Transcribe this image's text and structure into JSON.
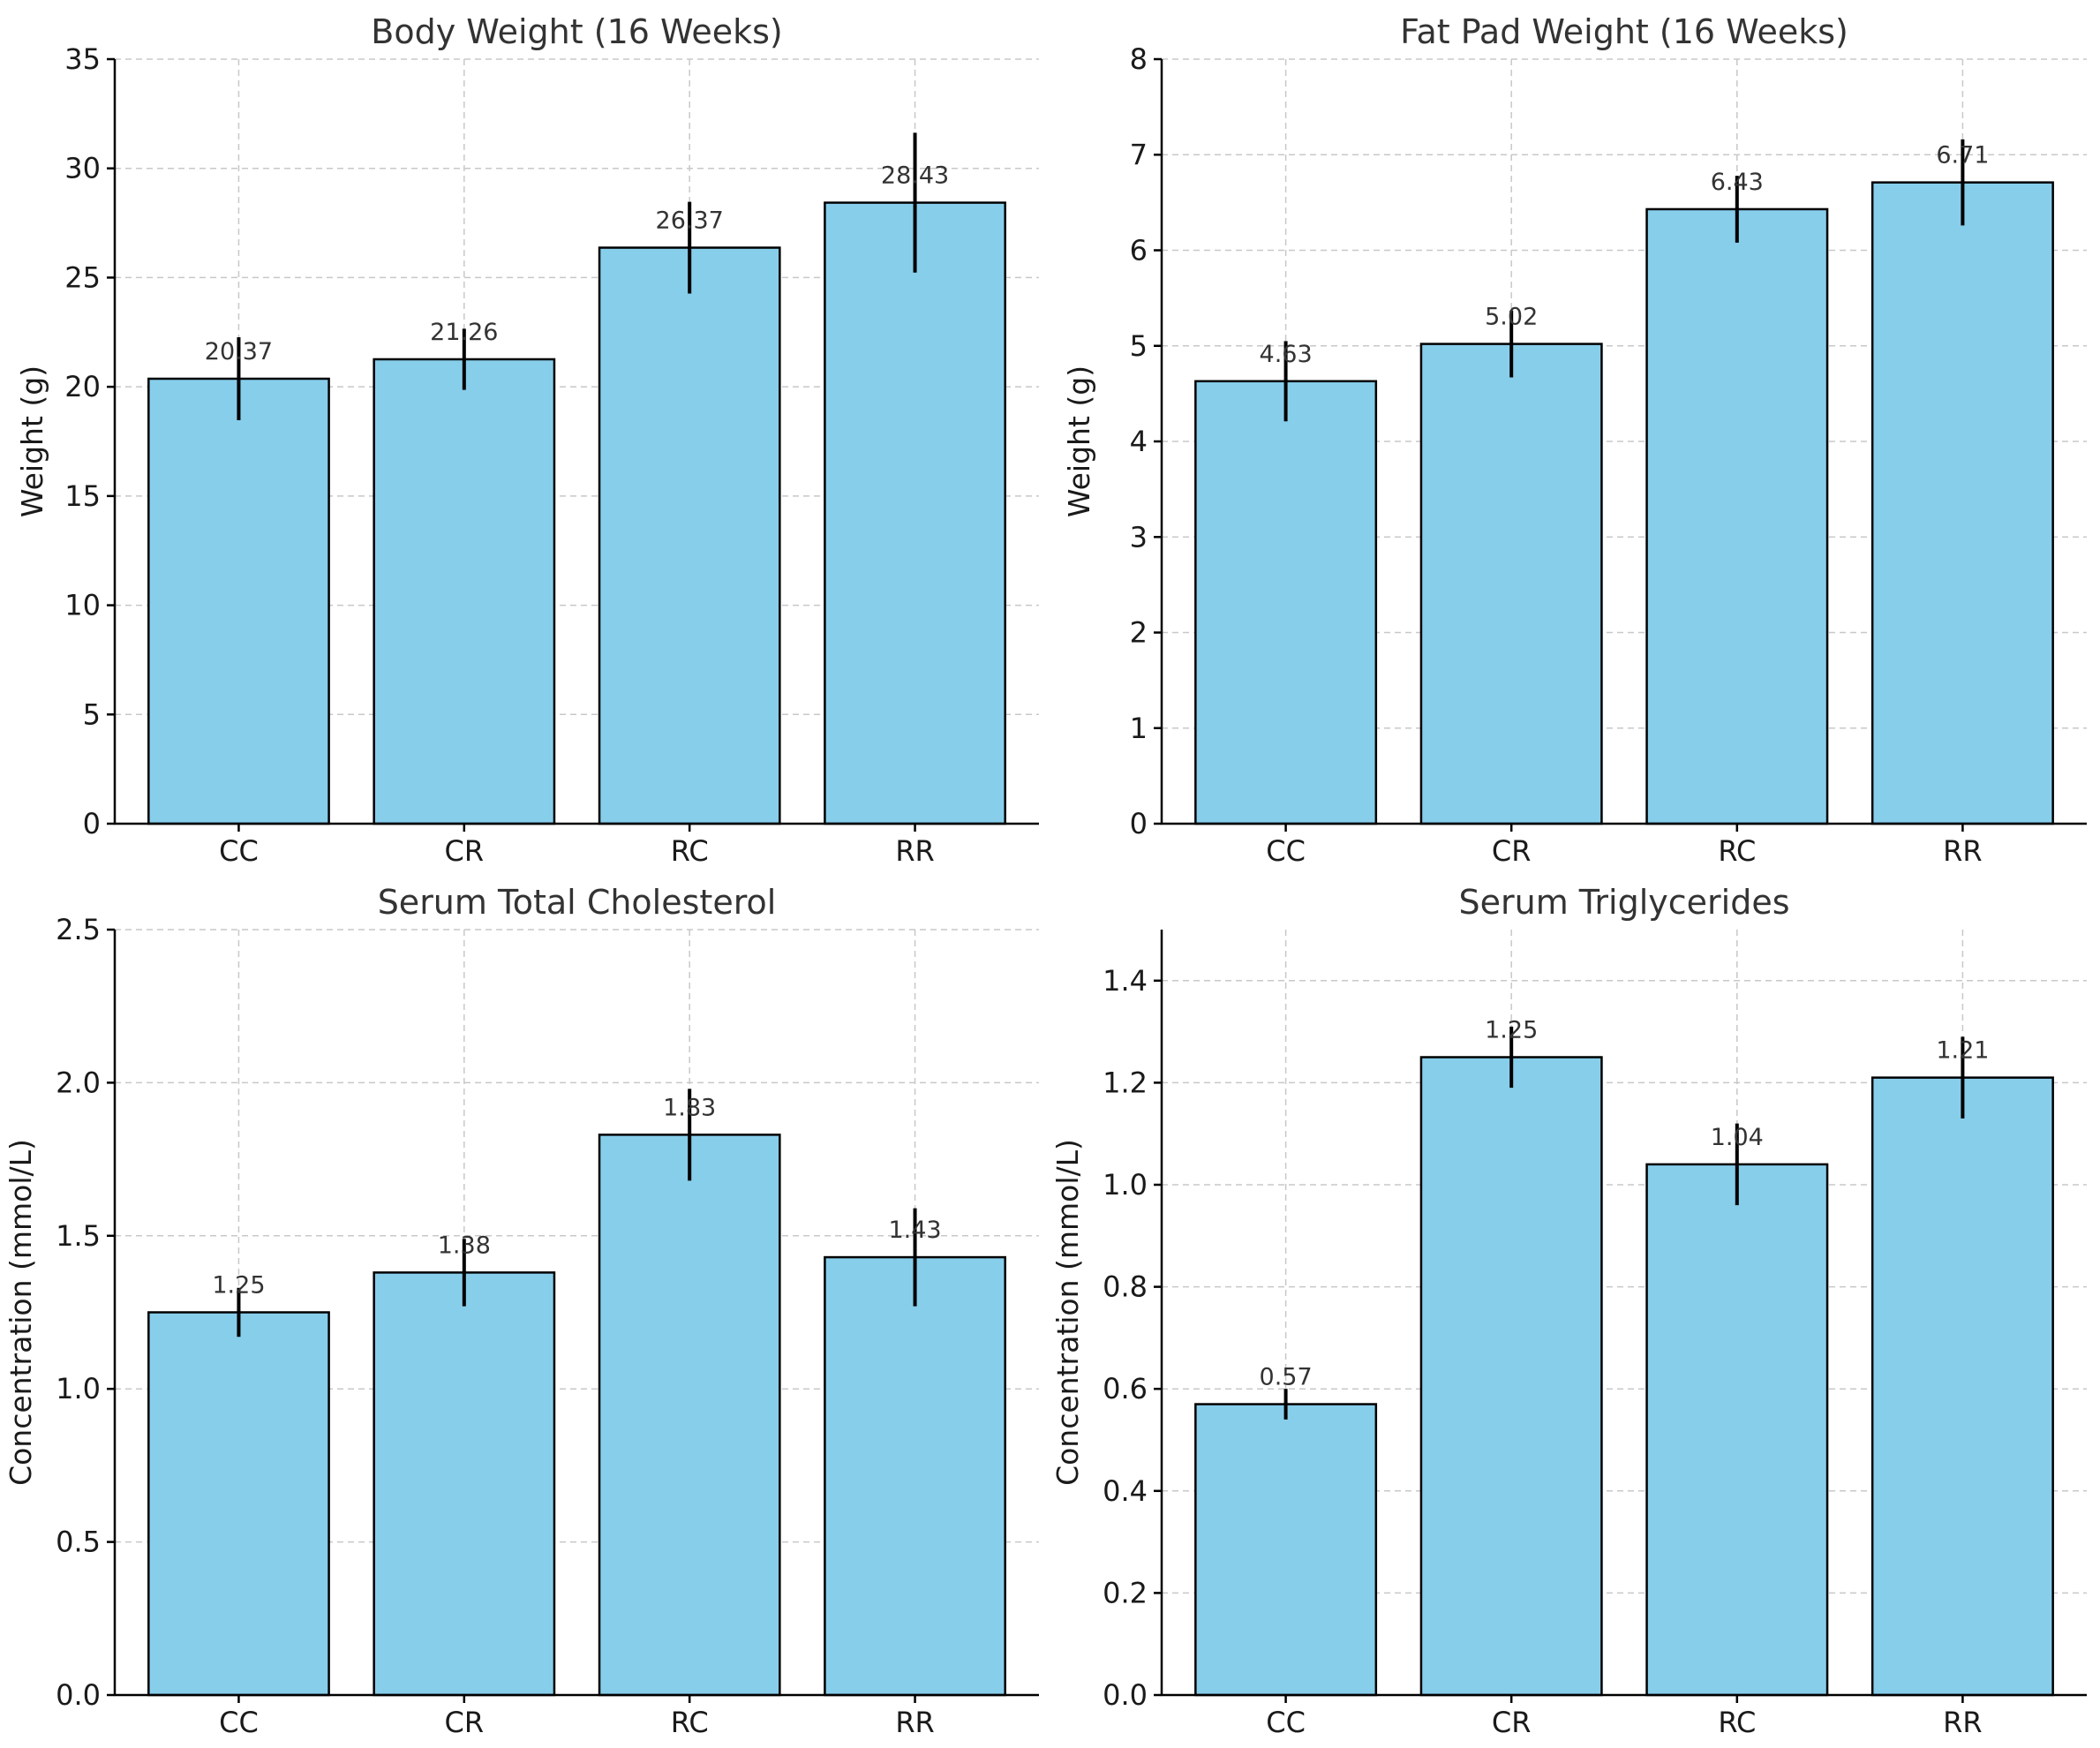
{
  "colors": {
    "bar": "#87CEEB",
    "edge": "#000000",
    "grid": "#c8c8c8"
  },
  "chart_data": [
    {
      "type": "bar",
      "title": "Body Weight (16 Weeks)",
      "xlabel": "",
      "ylabel": "Weight (g)",
      "categories": [
        "CC",
        "CR",
        "RC",
        "RR"
      ],
      "values": [
        20.37,
        21.26,
        26.37,
        28.43
      ],
      "errors": [
        1.9,
        1.4,
        2.1,
        3.2
      ],
      "value_labels": [
        "20.37",
        "21.26",
        "26.37",
        "28.43"
      ],
      "ylim": [
        0,
        35
      ],
      "yticks": [
        0,
        5,
        10,
        15,
        20,
        25,
        30,
        35
      ],
      "ytick_labels": [
        "0",
        "5",
        "10",
        "15",
        "20",
        "25",
        "30",
        "35"
      ],
      "grid": true
    },
    {
      "type": "bar",
      "title": "Fat Pad Weight (16 Weeks)",
      "xlabel": "",
      "ylabel": "Weight (g)",
      "categories": [
        "CC",
        "CR",
        "RC",
        "RR"
      ],
      "values": [
        4.63,
        5.02,
        6.43,
        6.71
      ],
      "errors": [
        0.42,
        0.35,
        0.35,
        0.45
      ],
      "value_labels": [
        "4.63",
        "5.02",
        "6.43",
        "6.71"
      ],
      "ylim": [
        0,
        8
      ],
      "yticks": [
        0,
        1,
        2,
        3,
        4,
        5,
        6,
        7,
        8
      ],
      "ytick_labels": [
        "0",
        "1",
        "2",
        "3",
        "4",
        "5",
        "6",
        "7",
        "8"
      ],
      "grid": true
    },
    {
      "type": "bar",
      "title": "Serum Total Cholesterol",
      "xlabel": "",
      "ylabel": "Concentration (mmol/L)",
      "categories": [
        "CC",
        "CR",
        "RC",
        "RR"
      ],
      "values": [
        1.25,
        1.38,
        1.83,
        1.43
      ],
      "errors": [
        0.08,
        0.11,
        0.15,
        0.16
      ],
      "value_labels": [
        "1.25",
        "1.38",
        "1.83",
        "1.43"
      ],
      "ylim": [
        0,
        2.5
      ],
      "yticks": [
        0,
        0.5,
        1.0,
        1.5,
        2.0,
        2.5
      ],
      "ytick_labels": [
        "0.0",
        "0.5",
        "1.0",
        "1.5",
        "2.0",
        "2.5"
      ],
      "grid": true
    },
    {
      "type": "bar",
      "title": "Serum Triglycerides",
      "xlabel": "",
      "ylabel": "Concentration (mmol/L)",
      "categories": [
        "CC",
        "CR",
        "RC",
        "RR"
      ],
      "values": [
        0.57,
        1.25,
        1.04,
        1.21
      ],
      "errors": [
        0.03,
        0.06,
        0.08,
        0.08
      ],
      "value_labels": [
        "0.57",
        "1.25",
        "1.04",
        "1.21"
      ],
      "ylim": [
        0,
        1.5
      ],
      "yticks": [
        0,
        0.2,
        0.4,
        0.6,
        0.8,
        1.0,
        1.2,
        1.4
      ],
      "ytick_labels": [
        "0.0",
        "0.2",
        "0.4",
        "0.6",
        "0.8",
        "1.0",
        "1.2",
        "1.4"
      ],
      "grid": true
    }
  ]
}
